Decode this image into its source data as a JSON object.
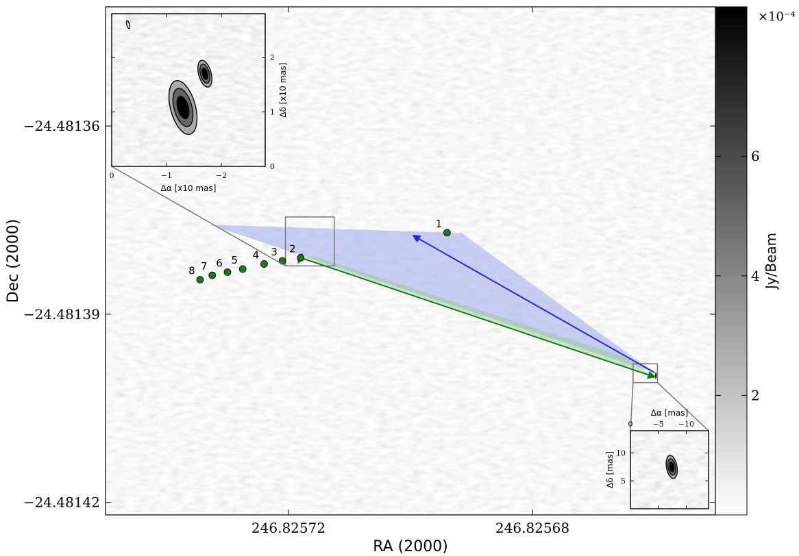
{
  "chart_data": {
    "type": "scatter",
    "xlabel": "RA (2000)",
    "ylabel": "Dec (2000)",
    "x_ticks": [
      "246.82572",
      "246.82568"
    ],
    "y_ticks": [
      "−24.48136",
      "−24.48139",
      "−24.48142"
    ],
    "xlim": [
      246.82575,
      246.82565
    ],
    "ylim": [
      -24.481422,
      -24.481341
    ],
    "colorbar": {
      "label": "Jy/Beam",
      "multiplier": "×10⁻⁴",
      "ticks": [
        "2",
        "4",
        "6"
      ],
      "tick_values": [
        2,
        4,
        6
      ],
      "range": [
        0,
        8.5
      ],
      "colormap": "grayscale (white to black)"
    },
    "points": [
      {
        "label": "1",
        "ra": 246.825694,
        "dec": -24.481377
      },
      {
        "label": "2",
        "ra": 246.825718,
        "dec": -24.481381
      },
      {
        "label": "3",
        "ra": 246.825721,
        "dec": -24.4813815
      },
      {
        "label": "4",
        "ra": 246.825724,
        "dec": -24.481382
      },
      {
        "label": "5",
        "ra": 246.8257275,
        "dec": -24.4813828
      },
      {
        "label": "6",
        "ra": 246.82573,
        "dec": -24.4813833
      },
      {
        "label": "7",
        "ra": 246.8257325,
        "dec": -24.4813838
      },
      {
        "label": "8",
        "ra": 246.8257345,
        "dec": -24.4813845
      }
    ],
    "point_color": "#1a7a1a",
    "arrows": [
      {
        "color": "#1f2bd9",
        "cone_color": "#9fa8ee",
        "from": {
          "ra": 246.82566,
          "dec": -24.4813993
        },
        "to": {
          "ra": 246.8256995,
          "dec": -24.4813775
        },
        "cone_tip": {
          "ra": 246.825715,
          "dec": -24.481379
        }
      },
      {
        "color": "#1a7a1a",
        "cone_color": "#8fca8f",
        "from": {
          "ra": 246.825718,
          "dec": -24.481381
        },
        "to": {
          "ra": 246.82566,
          "dec": -24.4814
        }
      }
    ],
    "inset_top": {
      "xlabel": "Δα [x10 mas]",
      "ylabel": "Δδ [x10 mas]",
      "x_ticks": [
        "0",
        "−1",
        "−2"
      ],
      "y_ticks": [
        "0",
        "1",
        "2"
      ],
      "xlim": [
        0,
        -2.8
      ],
      "ylim": [
        0,
        2.8
      ],
      "zoom_box": {
        "ra": [
          246.8257205,
          246.8257125
        ],
        "dec": [
          -24.4813823,
          -24.4813745
        ]
      },
      "sources": [
        {
          "dx": -1.3,
          "dy": 1.08,
          "flux_rank": 1
        },
        {
          "dx": -1.7,
          "dy": 1.7,
          "flux_rank": 2
        }
      ]
    },
    "inset_bottom": {
      "xlabel": "Δα [mas]",
      "ylabel": "Δδ [mas]",
      "x_ticks": [
        "0",
        "−5",
        "−10"
      ],
      "y_ticks": [
        "5",
        "10"
      ],
      "xlim": [
        0,
        -14
      ],
      "ylim": [
        0,
        14
      ],
      "zoom_box": {
        "ra": [
          246.8256635,
          246.8256595
        ],
        "dec": [
          -24.4814009,
          -24.4813979
        ]
      },
      "sources": [
        {
          "dx": -7.4,
          "dy": 7.5,
          "flux_rank": 1
        }
      ]
    }
  }
}
